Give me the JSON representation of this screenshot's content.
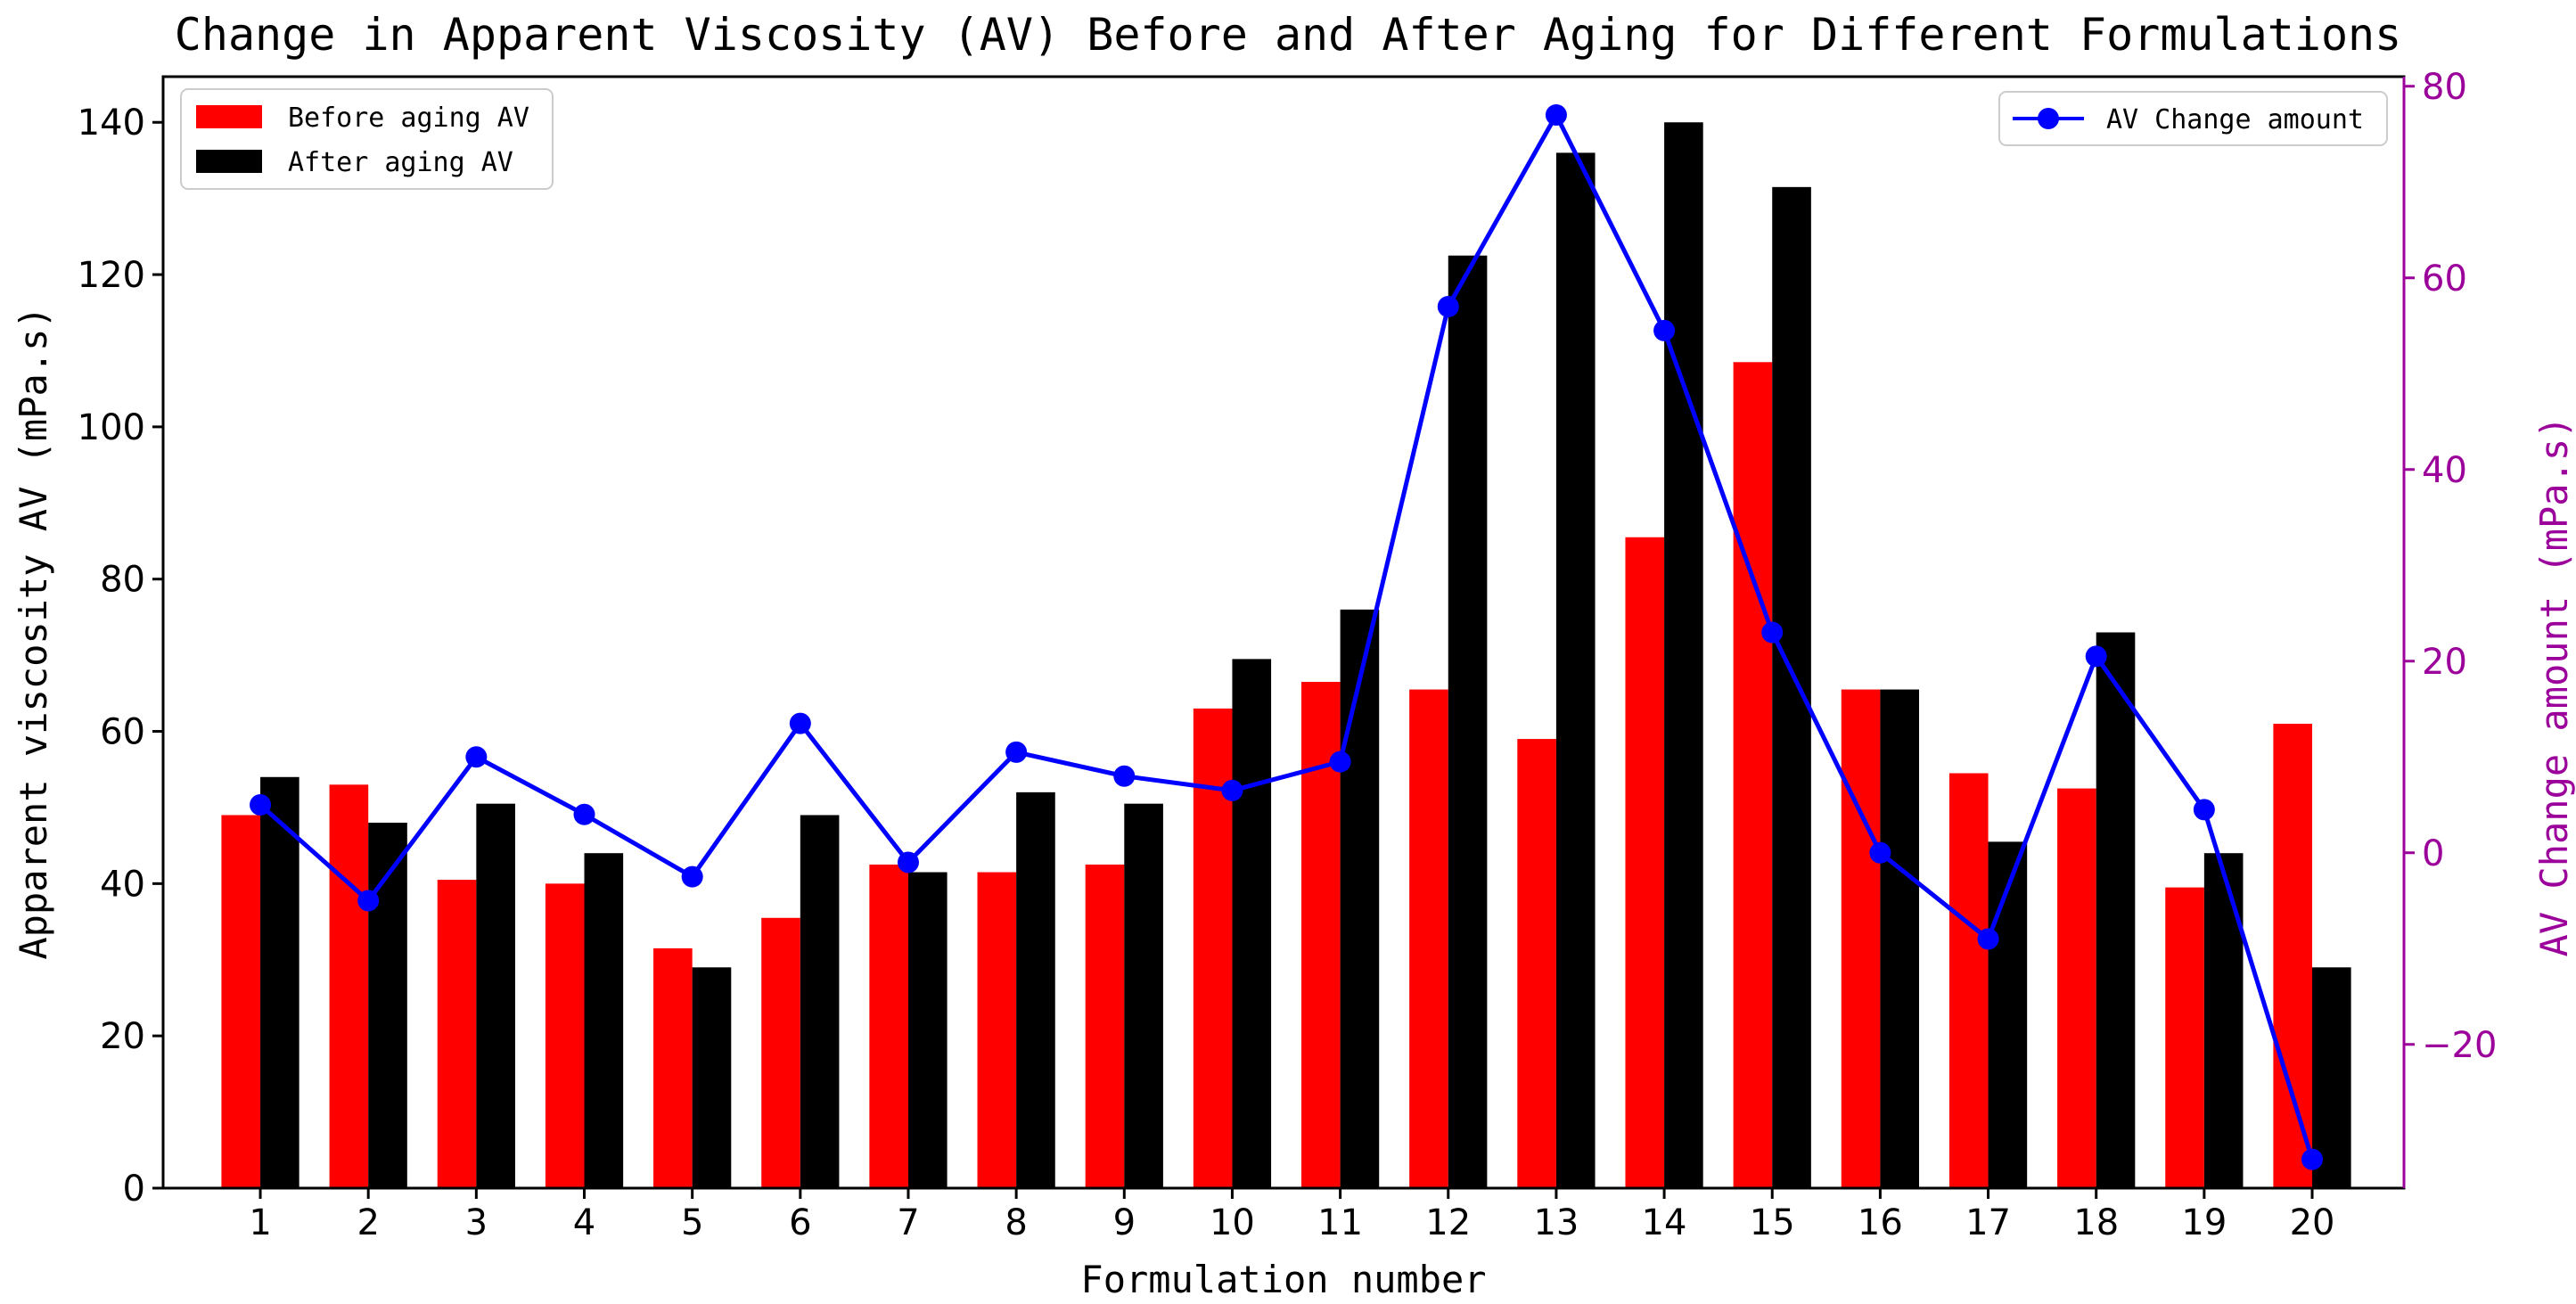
{
  "chart_data": {
    "type": "bar",
    "title": "Change in Apparent Viscosity (AV) Before and After Aging for Different Formulations",
    "xlabel": "Formulation number",
    "ylabel": "Apparent viscosity AV (mPa.s)",
    "y2label": "AV Change amount (mPa.s)",
    "categories": [
      "1",
      "2",
      "3",
      "4",
      "5",
      "6",
      "7",
      "8",
      "9",
      "10",
      "11",
      "12",
      "13",
      "14",
      "15",
      "16",
      "17",
      "18",
      "19",
      "20"
    ],
    "ylim": [
      0,
      146
    ],
    "yticks": [
      0,
      20,
      40,
      60,
      80,
      100,
      120,
      140
    ],
    "y2lim": [
      -35,
      81
    ],
    "y2ticks": [
      -20,
      0,
      20,
      40,
      60,
      80
    ],
    "y2tick_labels": [
      "−20",
      "0",
      "20",
      "40",
      "60",
      "80"
    ],
    "series": [
      {
        "name": "Before aging AV",
        "type": "bar",
        "color": "#ff0000",
        "values": [
          49,
          53,
          40.5,
          40,
          31.5,
          35.5,
          42.5,
          41.5,
          42.5,
          63,
          66.5,
          65.5,
          59,
          85.5,
          108.5,
          65.5,
          54.5,
          52.5,
          39.5,
          61
        ]
      },
      {
        "name": "After aging AV",
        "type": "bar",
        "color": "#000000",
        "values": [
          54,
          48,
          50.5,
          44,
          29,
          49,
          41.5,
          52,
          50.5,
          69.5,
          76,
          122.5,
          136,
          140,
          131.5,
          65.5,
          45.5,
          73,
          44,
          29
        ]
      },
      {
        "name": "AV Change amount",
        "type": "line",
        "axis": "right",
        "color": "#0000ff",
        "values": [
          5,
          -5,
          10,
          4,
          -2.5,
          13.5,
          -1,
          10.5,
          8,
          6.5,
          9.5,
          57,
          77,
          54.5,
          23,
          0,
          -9,
          20.5,
          4.5,
          -32
        ]
      }
    ],
    "legend_left": [
      "Before aging AV",
      "After aging AV"
    ],
    "legend_right": [
      "AV Change amount"
    ],
    "right_axis_color": "#9b009b"
  }
}
